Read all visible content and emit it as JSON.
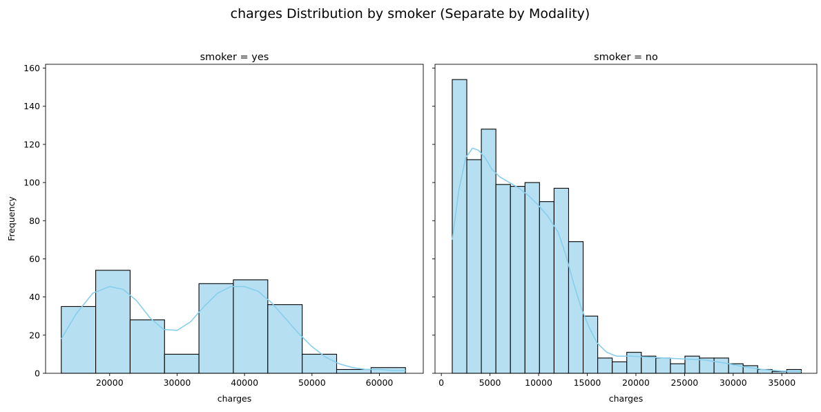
{
  "suptitle": "charges Distribution by smoker (Separate by Modality)",
  "colors": {
    "bar_fill": "#b6dff1",
    "bar_edge": "#000000",
    "kde": "#87ceeb"
  },
  "chart_data": [
    {
      "type": "bar",
      "title": "smoker = yes",
      "xlabel": "charges",
      "ylabel": "Frequency",
      "xlim": [
        10500,
        66500
      ],
      "ylim": [
        0,
        162
      ],
      "xticks": [
        20000,
        30000,
        40000,
        50000,
        60000
      ],
      "yticks": [
        0,
        20,
        40,
        60,
        80,
        100,
        120,
        140,
        160
      ],
      "bin_edges": [
        12829,
        17932,
        23035,
        28138,
        33241,
        38344,
        43447,
        48550,
        53653,
        58756,
        63859
      ],
      "values": [
        35,
        54,
        28,
        10,
        47,
        49,
        36,
        10,
        2,
        3
      ],
      "kde_x": [
        12829,
        15000,
        17500,
        20000,
        22000,
        24000,
        26000,
        28000,
        30000,
        32000,
        34000,
        36000,
        38000,
        40000,
        42000,
        44000,
        46000,
        48000,
        50000,
        52000,
        54000,
        56000,
        58000,
        60000,
        62000,
        63859
      ],
      "kde_y": [
        18,
        31,
        42,
        45.5,
        44,
        38,
        29,
        23,
        22.5,
        27,
        35,
        42,
        45.5,
        45.5,
        43,
        37,
        29,
        21,
        14,
        8.5,
        5,
        3,
        2,
        2,
        1.5,
        1.5
      ]
    },
    {
      "type": "bar",
      "title": "smoker = no",
      "xlabel": "charges",
      "ylabel": "",
      "xlim": [
        -650,
        38600
      ],
      "ylim": [
        0,
        162
      ],
      "xticks": [
        0,
        5000,
        10000,
        15000,
        20000,
        25000,
        30000,
        35000
      ],
      "yticks": [
        0,
        20,
        40,
        60,
        80,
        100,
        120,
        140,
        160
      ],
      "bin_edges": [
        1122,
        2617,
        4112,
        5607,
        7102,
        8597,
        10092,
        11587,
        13082,
        14577,
        16072,
        17567,
        19062,
        20557,
        22052,
        23547,
        25042,
        26537,
        28032,
        29527,
        31022,
        32517,
        34012,
        35507,
        37002
      ],
      "values": [
        154,
        112,
        128,
        99,
        98,
        100,
        90,
        97,
        69,
        30,
        8,
        6,
        11,
        9,
        8,
        5,
        9,
        8,
        8,
        5,
        4,
        2,
        1,
        2
      ],
      "kde_x": [
        1122,
        1800,
        2500,
        3200,
        3800,
        4500,
        5200,
        6000,
        7000,
        8000,
        9000,
        10000,
        11000,
        12000,
        12800,
        13600,
        14400,
        15200,
        16000,
        17000,
        18000,
        19500,
        21000,
        23000,
        25000,
        27000,
        29000,
        31000,
        33000,
        35000,
        37002
      ],
      "kde_y": [
        70,
        96,
        113,
        118,
        117,
        113,
        107,
        103,
        100,
        97,
        93,
        88,
        82,
        74,
        62,
        47,
        34,
        24,
        16,
        11,
        9,
        9,
        8.5,
        8,
        7.5,
        7,
        5.5,
        3.5,
        2,
        1.2,
        1
      ]
    }
  ]
}
